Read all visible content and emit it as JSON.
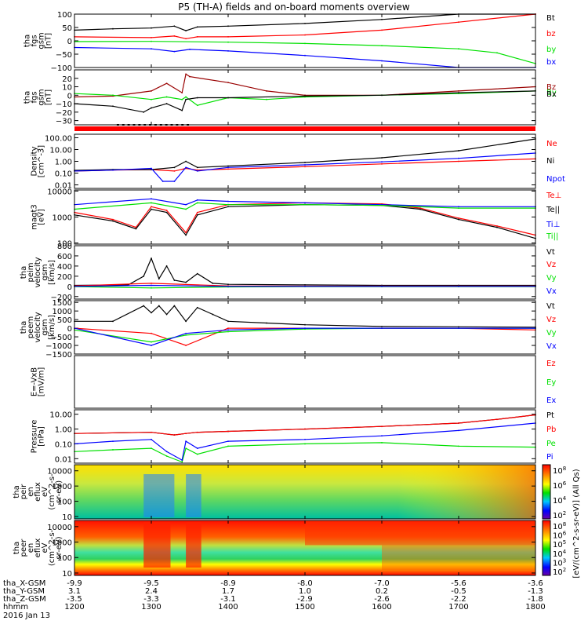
{
  "title": "P5 (TH-A) fields and on-board moments overview",
  "date_label": "2016 Jan 13",
  "colors": {
    "black": "#000000",
    "red": "#ff0000",
    "green": "#00e000",
    "blue": "#0000ff",
    "darkred": "#990000"
  },
  "colorbar": {
    "label": "[eV/(cm^2-s-sr-eV)] (All Qs)",
    "ticks_top": [
      "10^8",
      "10^6",
      "10^4",
      "10^2"
    ],
    "ticks_bottom": [
      "10^8",
      "10^6",
      "10^5",
      "10^4",
      "10^3",
      "10^2"
    ]
  },
  "x_axis": {
    "hhmm": [
      "1200",
      "1300",
      "1400",
      "1500",
      "1600",
      "1700",
      "1800"
    ],
    "rows": [
      {
        "label": "tha_X-GSM",
        "values": [
          "-9.9",
          "-9.5",
          "-8.9",
          "-8.0",
          "-7.0",
          "-5.6",
          "-3.6"
        ]
      },
      {
        "label": "tha_Y-GSM",
        "values": [
          "3.1",
          "2.4",
          "1.7",
          "1.0",
          "0.2",
          "-0.5",
          "-1.3"
        ]
      },
      {
        "label": "tha_Z-GSM",
        "values": [
          "-3.5",
          "-3.3",
          "-3.1",
          "-2.9",
          "-2.6",
          "-2.2",
          "-1.8"
        ]
      },
      {
        "label": "hhmm",
        "values": [
          "1200",
          "1300",
          "1400",
          "1500",
          "1600",
          "1700",
          "1800"
        ]
      }
    ]
  },
  "chart_data": [
    {
      "type": "line",
      "ylabel": [
        "tha",
        "fgs",
        "gsm",
        "[nT]"
      ],
      "yticks": [
        "100",
        "50",
        "0",
        "−50",
        "−100"
      ],
      "ylim": [
        -100,
        100
      ],
      "scale": "linear",
      "series": [
        {
          "name": "Bt",
          "color": "black",
          "x": [
            1200,
            1250,
            1300,
            1330,
            1345,
            1360,
            1400,
            1500,
            1600,
            1700,
            1800
          ],
          "y": [
            40,
            45,
            48,
            55,
            38,
            52,
            55,
            65,
            80,
            100,
            125
          ]
        },
        {
          "name": "bz",
          "color": "red",
          "x": [
            1200,
            1300,
            1330,
            1345,
            1360,
            1400,
            1500,
            1600,
            1700,
            1800
          ],
          "y": [
            15,
            12,
            18,
            8,
            15,
            15,
            22,
            40,
            70,
            120
          ]
        },
        {
          "name": "by",
          "color": "green",
          "x": [
            1200,
            1300,
            1400,
            1500,
            1600,
            1700,
            1750,
            1800
          ],
          "y": [
            -3,
            -2,
            -5,
            -10,
            -18,
            -30,
            -45,
            -85
          ]
        },
        {
          "name": "bx",
          "color": "blue",
          "x": [
            1200,
            1300,
            1330,
            1350,
            1400,
            1500,
            1600,
            1700,
            1800
          ],
          "y": [
            -25,
            -30,
            -40,
            -32,
            -38,
            -55,
            -75,
            -100,
            -125
          ]
        }
      ]
    },
    {
      "type": "line",
      "ylabel": [
        "tha",
        "fgs",
        "gsm",
        "[nT]"
      ],
      "yticks": [
        "20",
        "10",
        "0",
        "−10",
        "−20",
        "−30"
      ],
      "ylim": [
        -35,
        30
      ],
      "scale": "linear",
      "series": [
        {
          "name": "Bz",
          "color": "darkred",
          "x": [
            1200,
            1250,
            1300,
            1320,
            1340,
            1345,
            1350,
            1400,
            1450,
            1500,
            1600,
            1700,
            1800
          ],
          "y": [
            -2,
            -1,
            5,
            14,
            3,
            25,
            22,
            15,
            5,
            0,
            0,
            5,
            10
          ]
        },
        {
          "name": "By",
          "color": "green",
          "x": [
            1200,
            1250,
            1300,
            1320,
            1340,
            1345,
            1360,
            1400,
            1450,
            1500,
            1600,
            1700,
            1800
          ],
          "y": [
            2,
            0,
            -5,
            -2,
            -5,
            -2,
            -12,
            -3,
            -5,
            -2,
            0,
            2,
            5
          ]
        },
        {
          "name": "Bx",
          "color": "black",
          "x": [
            1200,
            1250,
            1290,
            1300,
            1320,
            1340,
            1345,
            1360,
            1400,
            1500,
            1600,
            1700,
            1800
          ],
          "y": [
            -10,
            -13,
            -20,
            -15,
            -10,
            -18,
            -5,
            -3,
            -3,
            -1,
            0,
            3,
            5
          ]
        }
      ]
    },
    {
      "type": "line",
      "ylabel": [
        "Density",
        "[cm^-3]"
      ],
      "yticks": [
        "100.00",
        "10.00",
        "1.00",
        "0.10",
        "0.01"
      ],
      "ylim": [
        0.005,
        200
      ],
      "scale": "log",
      "series": [
        {
          "name": "Ne",
          "color": "red",
          "x": [
            1200,
            1250,
            1300,
            1330,
            1345,
            1360,
            1400,
            1500,
            1600,
            1700,
            1800
          ],
          "y": [
            0.15,
            0.18,
            0.2,
            0.15,
            0.25,
            0.18,
            0.22,
            0.35,
            0.6,
            1.0,
            1.6
          ]
        },
        {
          "name": "Ni",
          "color": "black",
          "x": [
            1200,
            1250,
            1300,
            1330,
            1345,
            1360,
            1400,
            1500,
            1600,
            1700,
            1800
          ],
          "y": [
            0.17,
            0.2,
            0.2,
            0.3,
            1.0,
            0.3,
            0.4,
            0.8,
            2.0,
            8.0,
            80
          ]
        },
        {
          "name": "Npot",
          "color": "blue",
          "x": [
            1200,
            1250,
            1300,
            1315,
            1330,
            1345,
            1360,
            1400,
            1500,
            1600,
            1700,
            1800
          ],
          "y": [
            0.15,
            0.18,
            0.25,
            0.02,
            0.02,
            0.3,
            0.15,
            0.3,
            0.5,
            0.9,
            1.8,
            5.0
          ]
        }
      ]
    },
    {
      "type": "line",
      "ylabel": [
        "magt3",
        "[eV]"
      ],
      "yticks": [
        "10000",
        "1000",
        "100"
      ],
      "ylim": [
        90,
        11000
      ],
      "scale": "log",
      "series": [
        {
          "name": "Te⊥",
          "color": "red",
          "x": [
            1200,
            1250,
            1280,
            1300,
            1320,
            1345,
            1360,
            1400,
            1500,
            1600,
            1650,
            1700,
            1750,
            1800
          ],
          "y": [
            1500,
            800,
            400,
            2500,
            1800,
            250,
            1500,
            3000,
            3500,
            3200,
            2200,
            900,
            450,
            200
          ]
        },
        {
          "name": "Te||",
          "color": "black",
          "x": [
            1200,
            1250,
            1280,
            1300,
            1320,
            1345,
            1360,
            1400,
            1500,
            1600,
            1650,
            1700,
            1750,
            1800
          ],
          "y": [
            1200,
            700,
            350,
            2000,
            1500,
            200,
            1200,
            2500,
            3000,
            2800,
            2000,
            800,
            400,
            150
          ]
        },
        {
          "name": "Ti⊥",
          "color": "blue",
          "x": [
            1200,
            1300,
            1345,
            1360,
            1400,
            1500,
            1600,
            1700,
            1800
          ],
          "y": [
            3000,
            5000,
            3000,
            4500,
            4000,
            3500,
            3000,
            2500,
            2500
          ]
        },
        {
          "name": "Ti||",
          "color": "green",
          "x": [
            1200,
            1300,
            1345,
            1360,
            1400,
            1500,
            1600,
            1700,
            1800
          ],
          "y": [
            2000,
            3500,
            2000,
            3500,
            3000,
            3000,
            2800,
            2200,
            2200
          ]
        }
      ]
    },
    {
      "type": "line",
      "ylabel": [
        "tha",
        "peim",
        "velocity",
        "gsm",
        "[km/s]"
      ],
      "yticks": [
        "800",
        "600",
        "400",
        "200",
        "0",
        "−200"
      ],
      "ylim": [
        -250,
        800
      ],
      "scale": "linear",
      "series": [
        {
          "name": "Vt",
          "color": "black",
          "x": [
            1200,
            1270,
            1290,
            1300,
            1310,
            1320,
            1330,
            1345,
            1360,
            1380,
            1400,
            1500,
            1600,
            1700,
            1800
          ],
          "y": [
            20,
            30,
            200,
            550,
            150,
            400,
            120,
            80,
            250,
            60,
            40,
            30,
            20,
            20,
            20
          ]
        },
        {
          "name": "Vz",
          "color": "red",
          "x": [
            1200,
            1300,
            1400,
            1500,
            1600,
            1700,
            1800
          ],
          "y": [
            10,
            60,
            10,
            5,
            5,
            5,
            5
          ]
        },
        {
          "name": "Vy",
          "color": "green",
          "x": [
            1200,
            1300,
            1400,
            1500,
            1600,
            1700,
            1800
          ],
          "y": [
            -5,
            -30,
            -10,
            -5,
            -5,
            -5,
            -5
          ]
        },
        {
          "name": "Vx",
          "color": "blue",
          "x": [
            1200,
            1300,
            1400,
            1500,
            1600,
            1700,
            1800
          ],
          "y": [
            0,
            20,
            0,
            0,
            0,
            0,
            0
          ]
        }
      ]
    },
    {
      "type": "line",
      "ylabel": [
        "tha",
        "peem",
        "velocity",
        "gsm",
        "[km/s]"
      ],
      "yticks": [
        "1500",
        "1000",
        "500",
        "0",
        "−500",
        "−1000",
        "−1500"
      ],
      "ylim": [
        -1500,
        1600
      ],
      "scale": "linear",
      "series": [
        {
          "name": "Vt",
          "color": "black",
          "x": [
            1200,
            1250,
            1290,
            1300,
            1310,
            1320,
            1330,
            1345,
            1360,
            1380,
            1400,
            1450,
            1500,
            1600,
            1700,
            1800
          ],
          "y": [
            400,
            400,
            1300,
            900,
            1300,
            800,
            1300,
            400,
            1200,
            800,
            400,
            300,
            200,
            100,
            80,
            60
          ]
        },
        {
          "name": "Vz",
          "color": "red",
          "x": [
            1200,
            1300,
            1345,
            1400,
            1500,
            1600,
            1700,
            1800
          ],
          "y": [
            0,
            -300,
            -1000,
            0,
            0,
            0,
            0,
            -100
          ]
        },
        {
          "name": "Vy",
          "color": "green",
          "x": [
            1200,
            1300,
            1345,
            1400,
            1500,
            1600,
            1700,
            1800
          ],
          "y": [
            -100,
            -800,
            -400,
            -200,
            -50,
            0,
            0,
            0
          ]
        },
        {
          "name": "Vx",
          "color": "blue",
          "x": [
            1200,
            1300,
            1345,
            1400,
            1500,
            1600,
            1700,
            1800
          ],
          "y": [
            0,
            -1000,
            -300,
            -100,
            0,
            0,
            0,
            0
          ]
        }
      ]
    },
    {
      "type": "line",
      "ylabel": [
        "E=-VxB",
        "[mV/m]"
      ],
      "yticks": [],
      "ylim": [
        -1,
        1
      ],
      "scale": "linear",
      "series": [
        {
          "name": "Ez",
          "color": "red",
          "x": [],
          "y": []
        },
        {
          "name": "Ey",
          "color": "green",
          "x": [],
          "y": []
        },
        {
          "name": "Ex",
          "color": "blue",
          "x": [],
          "y": []
        }
      ]
    },
    {
      "type": "line",
      "ylabel": [
        "Pressure",
        "[nPa]"
      ],
      "yticks": [
        "10.00",
        "1.00",
        "0.10",
        "0.01"
      ],
      "ylim": [
        0.005,
        20
      ],
      "scale": "log",
      "series": [
        {
          "name": "Pt",
          "color": "black",
          "x": [
            1200,
            1300,
            1330,
            1345,
            1360,
            1400,
            1500,
            1600,
            1700,
            1750,
            1800
          ],
          "y": [
            0.5,
            0.6,
            0.4,
            0.5,
            0.6,
            0.7,
            1.0,
            1.5,
            2.5,
            4.5,
            9.0
          ]
        },
        {
          "name": "Pb",
          "color": "red",
          "x": [
            1200,
            1300,
            1330,
            1345,
            1360,
            1400,
            1500,
            1600,
            1700,
            1750,
            1800
          ],
          "y": [
            0.5,
            0.6,
            0.4,
            0.5,
            0.6,
            0.7,
            1.0,
            1.5,
            2.5,
            4.5,
            9.0
          ]
        },
        {
          "name": "Pe",
          "color": "green",
          "x": [
            1200,
            1250,
            1300,
            1320,
            1340,
            1345,
            1360,
            1400,
            1500,
            1600,
            1700,
            1800
          ],
          "y": [
            0.03,
            0.04,
            0.05,
            0.015,
            0.006,
            0.05,
            0.02,
            0.07,
            0.1,
            0.12,
            0.07,
            0.06
          ]
        },
        {
          "name": "Pi",
          "color": "blue",
          "x": [
            1200,
            1250,
            1300,
            1320,
            1340,
            1345,
            1360,
            1400,
            1500,
            1600,
            1700,
            1800
          ],
          "y": [
            0.1,
            0.15,
            0.2,
            0.03,
            0.008,
            0.15,
            0.05,
            0.15,
            0.2,
            0.35,
            0.8,
            2.5
          ]
        }
      ]
    },
    {
      "type": "heatmap",
      "ylabel": [
        "tha",
        "peir",
        "en",
        "eflux",
        "eV",
        "(cm^2-s-",
        "sr-eV)"
      ],
      "yticks": [
        "10000",
        "1000",
        "100",
        "10"
      ],
      "ylim": [
        7,
        25000
      ],
      "scale": "log"
    },
    {
      "type": "heatmap",
      "ylabel": [
        "tha",
        "peer",
        "en",
        "eflux",
        "eV",
        "(cm^2-s-",
        "sr-eV)"
      ],
      "yticks": [
        "10000",
        "1000",
        "100",
        "10"
      ],
      "ylim": [
        7,
        25000
      ],
      "scale": "log"
    }
  ]
}
